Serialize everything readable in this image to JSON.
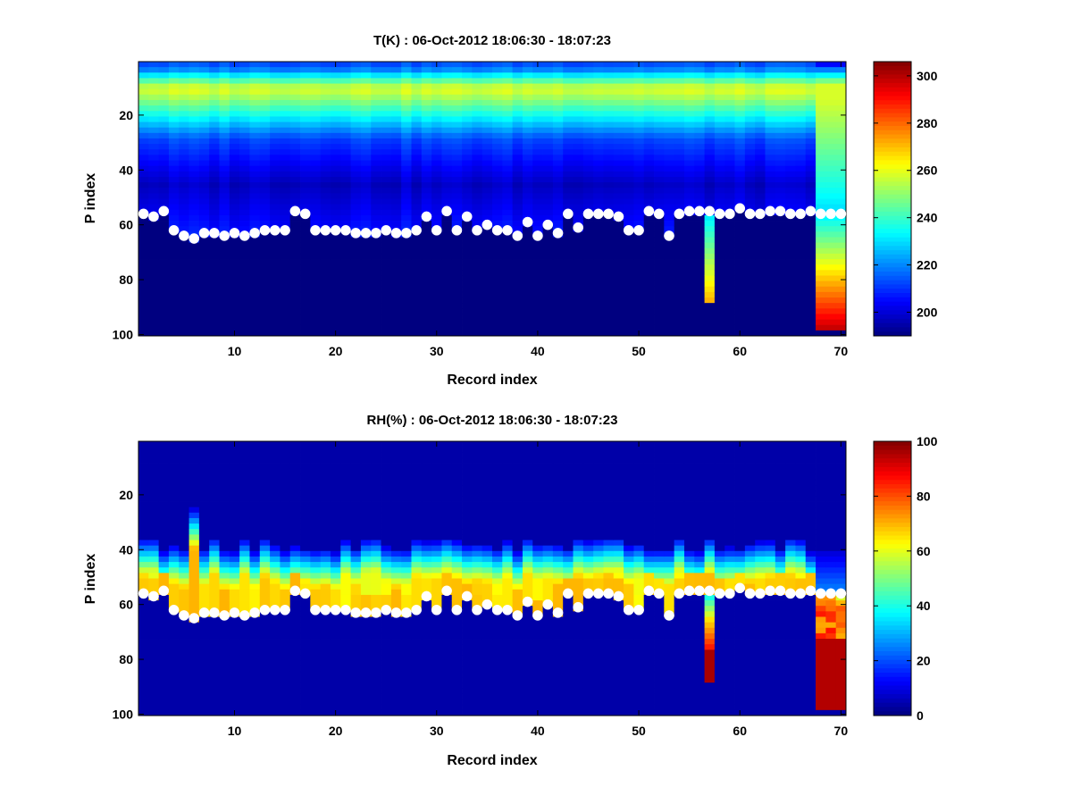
{
  "chart_data": [
    {
      "type": "heatmap",
      "title": "T(K) : 06-Oct-2012 18:06:30 - 18:07:23",
      "xlabel": "Record index",
      "ylabel": "P index",
      "xlim": [
        1,
        70
      ],
      "ylim": [
        1,
        100
      ],
      "y_reversed": true,
      "x_ticks": [
        10,
        20,
        30,
        40,
        50,
        60,
        70
      ],
      "y_ticks": [
        20,
        40,
        60,
        80,
        100
      ],
      "colorbar": {
        "min": 190,
        "max": 306,
        "ticks": [
          200,
          220,
          240,
          260,
          280,
          300
        ],
        "colormap": "jet"
      },
      "field": "temperature",
      "surface_index": [
        56,
        57,
        55,
        62,
        64,
        65,
        63,
        63,
        64,
        63,
        64,
        63,
        62,
        62,
        62,
        55,
        56,
        62,
        62,
        62,
        62,
        63,
        63,
        63,
        62,
        63,
        63,
        62,
        57,
        62,
        55,
        62,
        57,
        62,
        60,
        62,
        62,
        64,
        59,
        64,
        60,
        63,
        56,
        61,
        56,
        56,
        56,
        57,
        62,
        62,
        55,
        56,
        64,
        56,
        55,
        55,
        55,
        56,
        56,
        54,
        56,
        56,
        55,
        55,
        56,
        56,
        55,
        56,
        56,
        56
      ],
      "anomaly": {
        "record": 57,
        "depth": 87,
        "band_start": 57
      },
      "deep_record": {
        "start_record": 67.5,
        "depth": 98,
        "band_start": 56
      }
    },
    {
      "type": "heatmap",
      "title": "RH(%) : 06-Oct-2012 18:06:30 - 18:07:23",
      "xlabel": "Record index",
      "ylabel": "P index",
      "xlim": [
        1,
        70
      ],
      "ylim": [
        1,
        100
      ],
      "y_reversed": true,
      "x_ticks": [
        10,
        20,
        30,
        40,
        50,
        60,
        70
      ],
      "y_ticks": [
        20,
        40,
        60,
        80,
        100
      ],
      "colorbar": {
        "min": 0,
        "max": 100,
        "ticks": [
          0,
          20,
          40,
          60,
          80,
          100
        ],
        "colormap": "jet"
      },
      "field": "humidity",
      "surface_index": [
        56,
        57,
        55,
        62,
        64,
        65,
        63,
        63,
        64,
        63,
        64,
        63,
        62,
        62,
        62,
        55,
        56,
        62,
        62,
        62,
        62,
        63,
        63,
        63,
        62,
        63,
        63,
        62,
        57,
        62,
        55,
        62,
        57,
        62,
        60,
        62,
        62,
        64,
        59,
        64,
        60,
        63,
        56,
        61,
        56,
        56,
        56,
        57,
        62,
        62,
        55,
        56,
        64,
        56,
        55,
        55,
        55,
        56,
        56,
        54,
        56,
        56,
        55,
        55,
        56,
        56,
        55,
        56,
        56,
        56
      ],
      "anomaly": {
        "record": 57,
        "depth": 87,
        "band_start": 57
      },
      "deep_record": {
        "start_record": 67.5,
        "depth": 98,
        "band_start": 56
      }
    }
  ]
}
